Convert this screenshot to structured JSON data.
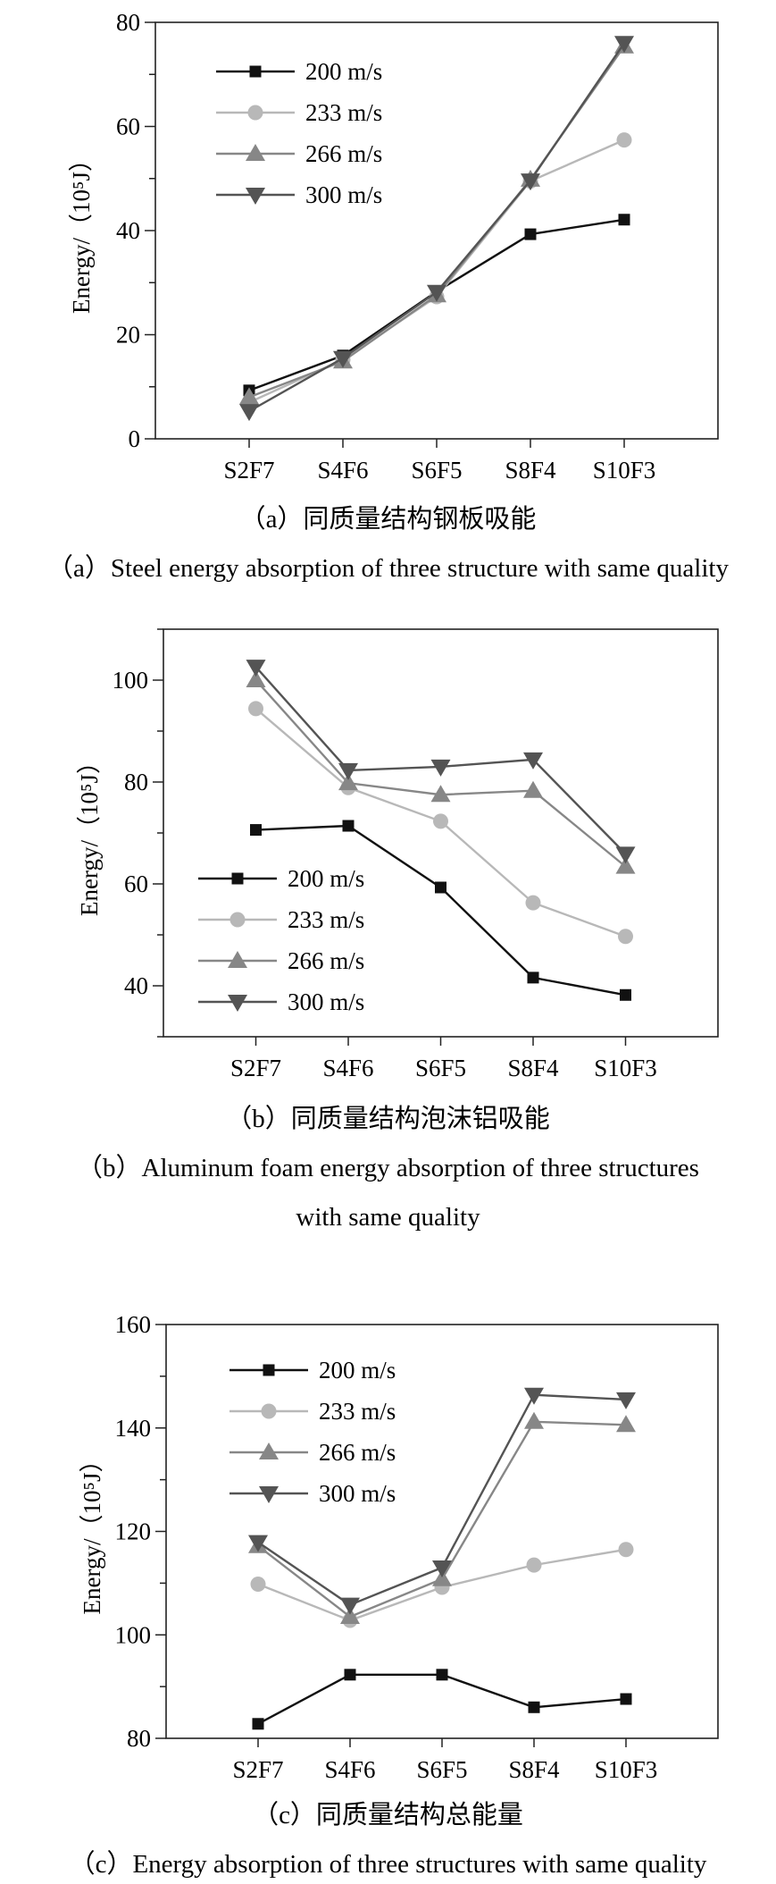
{
  "chart_data": [
    {
      "type": "line",
      "title": "",
      "ylabel": "Energy/（10⁵J）",
      "xlabel": "",
      "categories": [
        "S2F7",
        "S4F6",
        "S6F5",
        "S8F4",
        "S10F3"
      ],
      "ylim": [
        0,
        80
      ],
      "yticks": [
        0,
        20,
        40,
        60,
        80
      ],
      "legend_position": "top-left",
      "series": [
        {
          "name": "200 m/s",
          "color": "#111111",
          "marker": "square",
          "values": [
            9.3,
            16.0,
            28.3,
            39.3,
            42.1
          ]
        },
        {
          "name": "233 m/s",
          "color": "#b8b8b8",
          "marker": "circle",
          "values": [
            7.0,
            15.2,
            27.3,
            49.5,
            57.4
          ]
        },
        {
          "name": "266 m/s",
          "color": "#878787",
          "marker": "triangle-up",
          "values": [
            8.0,
            14.9,
            27.6,
            49.8,
            75.4
          ]
        },
        {
          "name": "300 m/s",
          "color": "#545454",
          "marker": "triangle-down",
          "values": [
            5.3,
            15.5,
            28.2,
            49.6,
            76.0
          ]
        }
      ],
      "caption_cn": "（a）同质量结构钢板吸能",
      "caption_en": "（a）Steel energy absorption of three structure with same quality"
    },
    {
      "type": "line",
      "title": "",
      "ylabel": "Energy/（10⁵J）",
      "xlabel": "",
      "categories": [
        "S2F7",
        "S4F6",
        "S6F5",
        "S8F4",
        "S10F3"
      ],
      "ylim": [
        30,
        110
      ],
      "yticks": [
        40,
        60,
        80,
        100
      ],
      "legend_position": "bottom-left",
      "series": [
        {
          "name": "200 m/s",
          "color": "#111111",
          "marker": "square",
          "values": [
            70.6,
            71.4,
            59.3,
            41.6,
            38.2
          ]
        },
        {
          "name": "233 m/s",
          "color": "#b8b8b8",
          "marker": "circle",
          "values": [
            94.4,
            78.9,
            72.3,
            56.3,
            49.7
          ]
        },
        {
          "name": "266 m/s",
          "color": "#878787",
          "marker": "triangle-up",
          "values": [
            100.0,
            79.8,
            77.5,
            78.3,
            63.4
          ]
        },
        {
          "name": "300 m/s",
          "color": "#545454",
          "marker": "triangle-down",
          "values": [
            102.6,
            82.3,
            83.0,
            84.4,
            65.9
          ]
        }
      ],
      "caption_cn": "（b）同质量结构泡沫铝吸能",
      "caption_en_line1": "（b）Aluminum foam energy absorption of three structures",
      "caption_en_line2": "with same quality"
    },
    {
      "type": "line",
      "title": "",
      "ylabel": "Energy/（10⁵J）",
      "xlabel": "",
      "categories": [
        "S2F7",
        "S4F6",
        "S6F5",
        "S8F4",
        "S10F3"
      ],
      "ylim": [
        80,
        160
      ],
      "yticks": [
        80,
        100,
        120,
        140,
        160
      ],
      "legend_position": "top-left",
      "series": [
        {
          "name": "200 m/s",
          "color": "#111111",
          "marker": "square",
          "values": [
            82.8,
            92.3,
            92.3,
            86.0,
            87.6
          ]
        },
        {
          "name": "233 m/s",
          "color": "#b8b8b8",
          "marker": "circle",
          "values": [
            109.8,
            102.8,
            109.2,
            113.5,
            116.5
          ]
        },
        {
          "name": "266 m/s",
          "color": "#878787",
          "marker": "triangle-up",
          "values": [
            117.2,
            103.5,
            110.8,
            141.2,
            140.6
          ]
        },
        {
          "name": "300 m/s",
          "color": "#545454",
          "marker": "triangle-down",
          "values": [
            117.9,
            105.8,
            113.0,
            146.4,
            145.5
          ]
        }
      ],
      "caption_cn": "（c）同质量结构总能量",
      "caption_en": "（c）Energy absorption of three structures with same quality"
    }
  ]
}
